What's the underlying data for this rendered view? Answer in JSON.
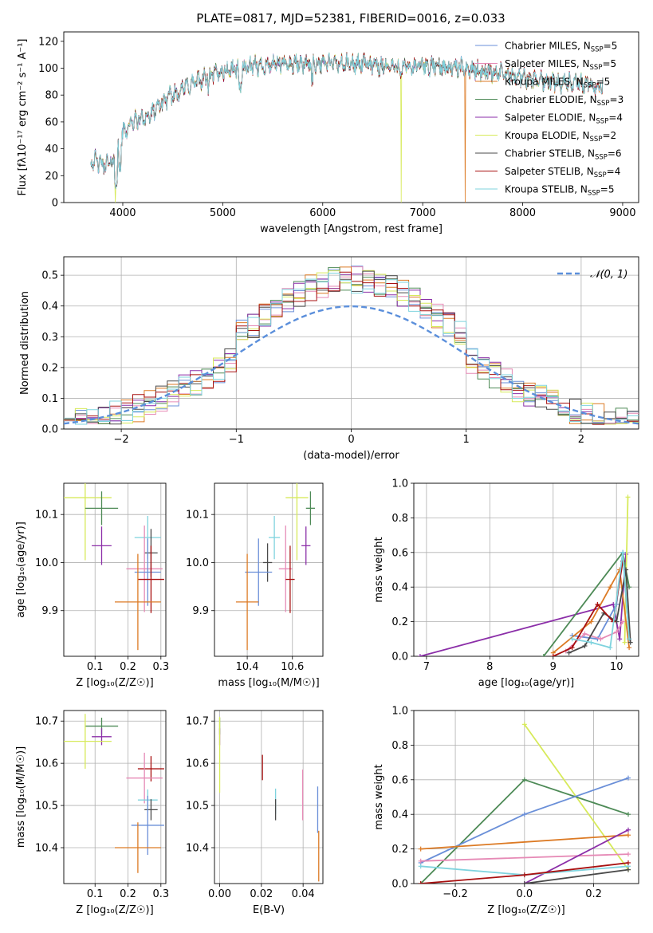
{
  "figure": {
    "title": "PLATE=0817, MJD=52381, FIBERID=0016, z=0.033"
  },
  "colors": {
    "chabrier_miles": "#6a8fd8",
    "salpeter_miles": "#e68ab6",
    "kroupa_miles": "#dc7a24",
    "chabrier_elodie": "#4d8a56",
    "salpeter_elodie": "#8b2ea8",
    "kroupa_elodie": "#d7ea5a",
    "chabrier_stelib": "#4a4a4a",
    "salpeter_stelib": "#a81010",
    "kroupa_stelib": "#7fd3de",
    "gauss": "#5b8fdb",
    "grid": "#b0b0b0"
  },
  "chart_data": [
    {
      "id": "spectrum",
      "type": "line",
      "xlabel": "wavelength [Angstrom, rest frame]",
      "ylabel": "Flux [f$_\\lambda$10$^{-17}$ erg cm$^{-2}$ s$^{-1}$ A$^{-1}$]",
      "ylabel_display": "Flux [fλ10⁻¹⁷ erg cm⁻² s⁻¹ A⁻¹]",
      "xlim": [
        3410,
        9160
      ],
      "ylim": [
        0,
        127
      ],
      "xticks": [
        4000,
        5000,
        6000,
        7000,
        8000,
        9000
      ],
      "yticks": [
        0,
        20,
        40,
        60,
        80,
        100,
        120
      ],
      "legend_position": "upper right",
      "continuum": {
        "x": [
          3700,
          3800,
          3900,
          3950,
          4000,
          4100,
          4200,
          4300,
          4400,
          4500,
          4600,
          4800,
          5000,
          5200,
          5400,
          5600,
          5800,
          6000,
          6200,
          6400,
          6600,
          6800,
          7000,
          7200,
          7400,
          7600,
          7800,
          8000,
          8200,
          8400,
          8600,
          8800
        ],
        "y": [
          32,
          28,
          30,
          38,
          52,
          60,
          63,
          66,
          75,
          80,
          85,
          92,
          98,
          100,
          102,
          103,
          103,
          104,
          103,
          103,
          102,
          100,
          102,
          101,
          100,
          98,
          96,
          93,
          91,
          89,
          88,
          86
        ]
      },
      "drops": [
        {
          "series": "Kroupa ELODIE",
          "x": 3925
        },
        {
          "series": "Kroupa ELODIE",
          "x": 6785
        },
        {
          "series": "Kroupa MILES",
          "x": 7425
        }
      ],
      "legend": [
        {
          "key": "chabrier_miles",
          "label": "Chabrier MILES, N",
          "sub": "SSP",
          "suffix": "=5"
        },
        {
          "key": "salpeter_miles",
          "label": "Salpeter MILES, N",
          "sub": "SSP",
          "suffix": "=5"
        },
        {
          "key": "kroupa_miles",
          "label": "Kroupa MILES, N",
          "sub": "SSP",
          "suffix": "=5"
        },
        {
          "key": "chabrier_elodie",
          "label": "Chabrier ELODIE, N",
          "sub": "SSP",
          "suffix": "=3"
        },
        {
          "key": "salpeter_elodie",
          "label": "Salpeter ELODIE, N",
          "sub": "SSP",
          "suffix": "=4"
        },
        {
          "key": "kroupa_elodie",
          "label": "Kroupa ELODIE, N",
          "sub": "SSP",
          "suffix": "=2"
        },
        {
          "key": "chabrier_stelib",
          "label": "Chabrier STELIB, N",
          "sub": "SSP",
          "suffix": "=6"
        },
        {
          "key": "salpeter_stelib",
          "label": "Salpeter STELIB, N",
          "sub": "SSP",
          "suffix": "=4"
        },
        {
          "key": "kroupa_stelib",
          "label": "Kroupa STELIB, N",
          "sub": "SSP",
          "suffix": "=5"
        }
      ]
    },
    {
      "id": "residuals",
      "type": "step",
      "xlabel": "(data-model)/error",
      "ylabel": "Normed distribution",
      "xlim": [
        -2.5,
        2.5
      ],
      "ylim": [
        0,
        0.56
      ],
      "xticks": [
        -2,
        -1,
        0,
        1,
        2
      ],
      "xticklabels": [
        "−2",
        "−1",
        "0",
        "1",
        "2"
      ],
      "yticks": [
        0.0,
        0.1,
        0.2,
        0.3,
        0.4,
        0.5
      ],
      "yticklabels": [
        "0.0",
        "0.1",
        "0.2",
        "0.3",
        "0.4",
        "0.5"
      ],
      "bin_width": 0.1,
      "bin_start": -2.5,
      "gauss_label": "𝒩(0, 1)",
      "legend_position": "upper right"
    },
    {
      "id": "age_vs_Z",
      "type": "errorbar",
      "xlabel": "Z [log₁₀(Z/Z☉)]",
      "ylabel": "age  [log₁₀(age/yr)]",
      "xlim": [
        0.005,
        0.315
      ],
      "ylim": [
        9.805,
        10.165
      ],
      "xticks": [
        0.1,
        0.2,
        0.3
      ],
      "xticklabels": [
        "0.1",
        "0.2",
        "0.3"
      ],
      "yticks": [
        9.9,
        10.0,
        10.1
      ],
      "yticklabels": [
        "9.9",
        "10.0",
        "10.1"
      ],
      "points": [
        {
          "key": "kroupa_elodie",
          "x": 0.07,
          "xerr": 0.08,
          "y": 10.135,
          "yerr": 0.13
        },
        {
          "key": "chabrier_elodie",
          "x": 0.12,
          "xerr": 0.05,
          "y": 10.113,
          "yerr": 0.035
        },
        {
          "key": "salpeter_elodie",
          "x": 0.12,
          "xerr": 0.03,
          "y": 10.035,
          "yerr": 0.04
        },
        {
          "key": "kroupa_stelib",
          "x": 0.26,
          "xerr": 0.04,
          "y": 10.052,
          "yerr": 0.045
        },
        {
          "key": "chabrier_stelib",
          "x": 0.27,
          "xerr": 0.02,
          "y": 10.02,
          "yerr": 0.05
        },
        {
          "key": "salpeter_miles",
          "x": 0.25,
          "xerr": 0.055,
          "y": 9.987,
          "yerr": 0.09
        },
        {
          "key": "chabrier_miles",
          "x": 0.26,
          "xerr": 0.04,
          "y": 9.98,
          "yerr": 0.07
        },
        {
          "key": "salpeter_stelib",
          "x": 0.27,
          "xerr": 0.04,
          "y": 9.965,
          "yerr": 0.07
        },
        {
          "key": "kroupa_miles",
          "x": 0.23,
          "xerr": 0.07,
          "y": 9.918,
          "yerr": 0.1
        }
      ]
    },
    {
      "id": "age_vs_mass",
      "type": "errorbar",
      "xlabel": "mass [log₁₀(M/M☉)]",
      "ylabel": "",
      "xlim": [
        10.255,
        10.735
      ],
      "ylim": [
        9.805,
        10.165
      ],
      "xticks": [
        10.4,
        10.6
      ],
      "xticklabels": [
        "10.4",
        "10.6"
      ],
      "yticks": [
        9.9,
        10.0,
        10.1
      ],
      "yticklabels": [
        "9.9",
        "10.0",
        "10.1"
      ],
      "points": [
        {
          "key": "kroupa_elodie",
          "x": 10.62,
          "xerr": 0.05,
          "y": 10.135,
          "yerr": 0.13
        },
        {
          "key": "chabrier_elodie",
          "x": 10.68,
          "xerr": 0.02,
          "y": 10.113,
          "yerr": 0.035
        },
        {
          "key": "salpeter_elodie",
          "x": 10.66,
          "xerr": 0.02,
          "y": 10.035,
          "yerr": 0.04
        },
        {
          "key": "kroupa_stelib",
          "x": 10.52,
          "xerr": 0.025,
          "y": 10.052,
          "yerr": 0.045
        },
        {
          "key": "chabrier_stelib",
          "x": 10.49,
          "xerr": 0.02,
          "y": 10.0,
          "yerr": 0.04
        },
        {
          "key": "salpeter_miles",
          "x": 10.57,
          "xerr": 0.03,
          "y": 9.987,
          "yerr": 0.09
        },
        {
          "key": "chabrier_miles",
          "x": 10.45,
          "xerr": 0.06,
          "y": 9.98,
          "yerr": 0.07
        },
        {
          "key": "salpeter_stelib",
          "x": 10.59,
          "xerr": 0.02,
          "y": 9.965,
          "yerr": 0.07
        },
        {
          "key": "kroupa_miles",
          "x": 10.4,
          "xerr": 0.05,
          "y": 9.918,
          "yerr": 0.1
        }
      ]
    },
    {
      "id": "mass_weight_vs_age",
      "type": "line",
      "xlabel": "age  [log₁₀(age/yr)]",
      "ylabel": "mass weight",
      "xlim": [
        6.8,
        10.35
      ],
      "ylim": [
        0,
        1.0
      ],
      "xticks": [
        7,
        8,
        9,
        10
      ],
      "xticklabels": [
        "7",
        "8",
        "9",
        "10"
      ],
      "yticks": [
        0.0,
        0.2,
        0.4,
        0.6,
        0.8,
        1.0
      ],
      "yticklabels": [
        "0.0",
        "0.2",
        "0.4",
        "0.6",
        "0.8",
        "1.0"
      ],
      "series": [
        {
          "key": "salpeter_elodie",
          "x": [
            6.9,
            9.95,
            10.05,
            10.15
          ],
          "y": [
            0.0,
            0.3,
            0.1,
            0.59
          ]
        },
        {
          "key": "chabrier_elodie",
          "x": [
            8.85,
            10.1,
            10.2
          ],
          "y": [
            0.0,
            0.6,
            0.4
          ]
        },
        {
          "key": "kroupa_elodie",
          "x": [
            10.13,
            10.18
          ],
          "y": [
            0.08,
            0.92
          ]
        },
        {
          "key": "chabrier_miles",
          "x": [
            9.3,
            9.7,
            10.0,
            10.1,
            10.2
          ],
          "y": [
            0.12,
            0.1,
            0.3,
            0.6,
            0.1
          ]
        },
        {
          "key": "kroupa_miles",
          "x": [
            9.0,
            9.6,
            9.9,
            10.05,
            10.2
          ],
          "y": [
            0.02,
            0.2,
            0.4,
            0.5,
            0.05
          ]
        },
        {
          "key": "salpeter_miles",
          "x": [
            9.2,
            9.5,
            9.75,
            10.0,
            10.1
          ],
          "y": [
            0.03,
            0.13,
            0.1,
            0.14,
            0.2
          ]
        },
        {
          "key": "chabrier_stelib",
          "x": [
            9.25,
            9.5,
            9.8,
            10.0,
            10.15,
            10.22
          ],
          "y": [
            0.02,
            0.06,
            0.25,
            0.2,
            0.5,
            0.08
          ]
        },
        {
          "key": "salpeter_stelib",
          "x": [
            9.0,
            9.3,
            9.7,
            9.95,
            10.1
          ],
          "y": [
            0.0,
            0.05,
            0.3,
            0.2,
            0.55
          ]
        },
        {
          "key": "kroupa_stelib",
          "x": [
            9.3,
            9.6,
            9.9,
            10.1,
            10.2
          ],
          "y": [
            0.1,
            0.08,
            0.05,
            0.6,
            0.1
          ]
        }
      ]
    },
    {
      "id": "mass_vs_Z",
      "type": "errorbar",
      "xlabel": "Z [log₁₀(Z/Z☉)]",
      "ylabel": "mass [log₁₀(M/M☉)]",
      "xlim": [
        0.005,
        0.315
      ],
      "ylim": [
        10.315,
        10.725
      ],
      "xticks": [
        0.1,
        0.2,
        0.3
      ],
      "xticklabels": [
        "0.1",
        "0.2",
        "0.3"
      ],
      "yticks": [
        10.4,
        10.5,
        10.6,
        10.7
      ],
      "yticklabels": [
        "10.4",
        "10.5",
        "10.6",
        "10.7"
      ],
      "points": [
        {
          "key": "chabrier_elodie",
          "x": 0.12,
          "xerr": 0.05,
          "y": 10.688,
          "yerr": 0.02
        },
        {
          "key": "salpeter_elodie",
          "x": 0.12,
          "xerr": 0.03,
          "y": 10.663,
          "yerr": 0.02
        },
        {
          "key": "kroupa_elodie",
          "x": 0.07,
          "xerr": 0.08,
          "y": 10.652,
          "yerr": 0.065
        },
        {
          "key": "salpeter_stelib",
          "x": 0.27,
          "xerr": 0.04,
          "y": 10.587,
          "yerr": 0.03
        },
        {
          "key": "salpeter_miles",
          "x": 0.25,
          "xerr": 0.055,
          "y": 10.565,
          "yerr": 0.06
        },
        {
          "key": "kroupa_stelib",
          "x": 0.26,
          "xerr": 0.03,
          "y": 10.513,
          "yerr": 0.025
        },
        {
          "key": "chabrier_stelib",
          "x": 0.27,
          "xerr": 0.02,
          "y": 10.49,
          "yerr": 0.025
        },
        {
          "key": "chabrier_miles",
          "x": 0.26,
          "xerr": 0.05,
          "y": 10.453,
          "yerr": 0.07
        },
        {
          "key": "kroupa_miles",
          "x": 0.23,
          "xerr": 0.07,
          "y": 10.4,
          "yerr": 0.06
        }
      ]
    },
    {
      "id": "mass_vs_ebv",
      "type": "errorbar",
      "xlabel": "E(B-V)",
      "ylabel": "",
      "xlim": [
        -0.0025,
        0.0495
      ],
      "ylim": [
        10.315,
        10.725
      ],
      "xticks": [
        0.0,
        0.02,
        0.04
      ],
      "xticklabels": [
        "0.00",
        "0.02",
        "0.04"
      ],
      "yticks": [
        10.4,
        10.5,
        10.6,
        10.7
      ],
      "yticklabels": [
        "10.4",
        "10.5",
        "10.6",
        "10.7"
      ],
      "points": [
        {
          "key": "chabrier_elodie",
          "x": 0.0,
          "xerr": 0,
          "y": 10.688,
          "yerr": 0.02
        },
        {
          "key": "salpeter_elodie",
          "x": 0.0,
          "xerr": 0,
          "y": 10.663,
          "yerr": 0.02
        },
        {
          "key": "kroupa_elodie",
          "x": 0.0,
          "xerr": 0,
          "y": 10.62,
          "yerr": 0.09
        },
        {
          "key": "salpeter_stelib",
          "x": 0.0205,
          "xerr": 0,
          "y": 10.59,
          "yerr": 0.03
        },
        {
          "key": "kroupa_stelib",
          "x": 0.0268,
          "xerr": 0,
          "y": 10.51,
          "yerr": 0.03
        },
        {
          "key": "chabrier_stelib",
          "x": 0.0268,
          "xerr": 0,
          "y": 10.49,
          "yerr": 0.025
        },
        {
          "key": "salpeter_miles",
          "x": 0.0398,
          "xerr": 0,
          "y": 10.525,
          "yerr": 0.06
        },
        {
          "key": "chabrier_miles",
          "x": 0.047,
          "xerr": 0,
          "y": 10.49,
          "yerr": 0.055
        },
        {
          "key": "kroupa_miles",
          "x": 0.0475,
          "xerr": 0,
          "y": 10.38,
          "yerr": 0.06
        }
      ]
    },
    {
      "id": "mass_weight_vs_Z",
      "type": "line",
      "xlabel": "Z [log₁₀(Z/Z☉)]",
      "ylabel": "mass weight",
      "xlim": [
        -0.32,
        0.33
      ],
      "ylim": [
        0,
        1.0
      ],
      "xticks": [
        -0.2,
        0.0,
        0.2
      ],
      "xticklabels": [
        "−0.2",
        "0.0",
        "0.2"
      ],
      "yticks": [
        0.0,
        0.2,
        0.4,
        0.6,
        0.8,
        1.0
      ],
      "yticklabels": [
        "0.0",
        "0.2",
        "0.4",
        "0.6",
        "0.8",
        "1.0"
      ],
      "series": [
        {
          "key": "kroupa_elodie",
          "x": [
            0.0,
            0.3
          ],
          "y": [
            0.92,
            0.08
          ]
        },
        {
          "key": "chabrier_elodie",
          "x": [
            -0.3,
            0.0,
            0.3
          ],
          "y": [
            0.0,
            0.6,
            0.4
          ]
        },
        {
          "key": "chabrier_miles",
          "x": [
            -0.3,
            0.0,
            0.3
          ],
          "y": [
            0.12,
            0.4,
            0.61
          ]
        },
        {
          "key": "kroupa_miles",
          "x": [
            -0.3,
            0.3
          ],
          "y": [
            0.2,
            0.28
          ]
        },
        {
          "key": "salpeter_miles",
          "x": [
            -0.3,
            0.3
          ],
          "y": [
            0.13,
            0.17
          ]
        },
        {
          "key": "salpeter_elodie",
          "x": [
            0.0,
            0.3
          ],
          "y": [
            0.0,
            0.31
          ]
        },
        {
          "key": "kroupa_stelib",
          "x": [
            -0.3,
            0.0,
            0.3
          ],
          "y": [
            0.1,
            0.05,
            0.1
          ]
        },
        {
          "key": "salpeter_stelib",
          "x": [
            -0.3,
            0.0,
            0.3
          ],
          "y": [
            0.0,
            0.05,
            0.12
          ]
        },
        {
          "key": "chabrier_stelib",
          "x": [
            0.0,
            0.3
          ],
          "y": [
            0.0,
            0.08
          ]
        }
      ]
    }
  ]
}
